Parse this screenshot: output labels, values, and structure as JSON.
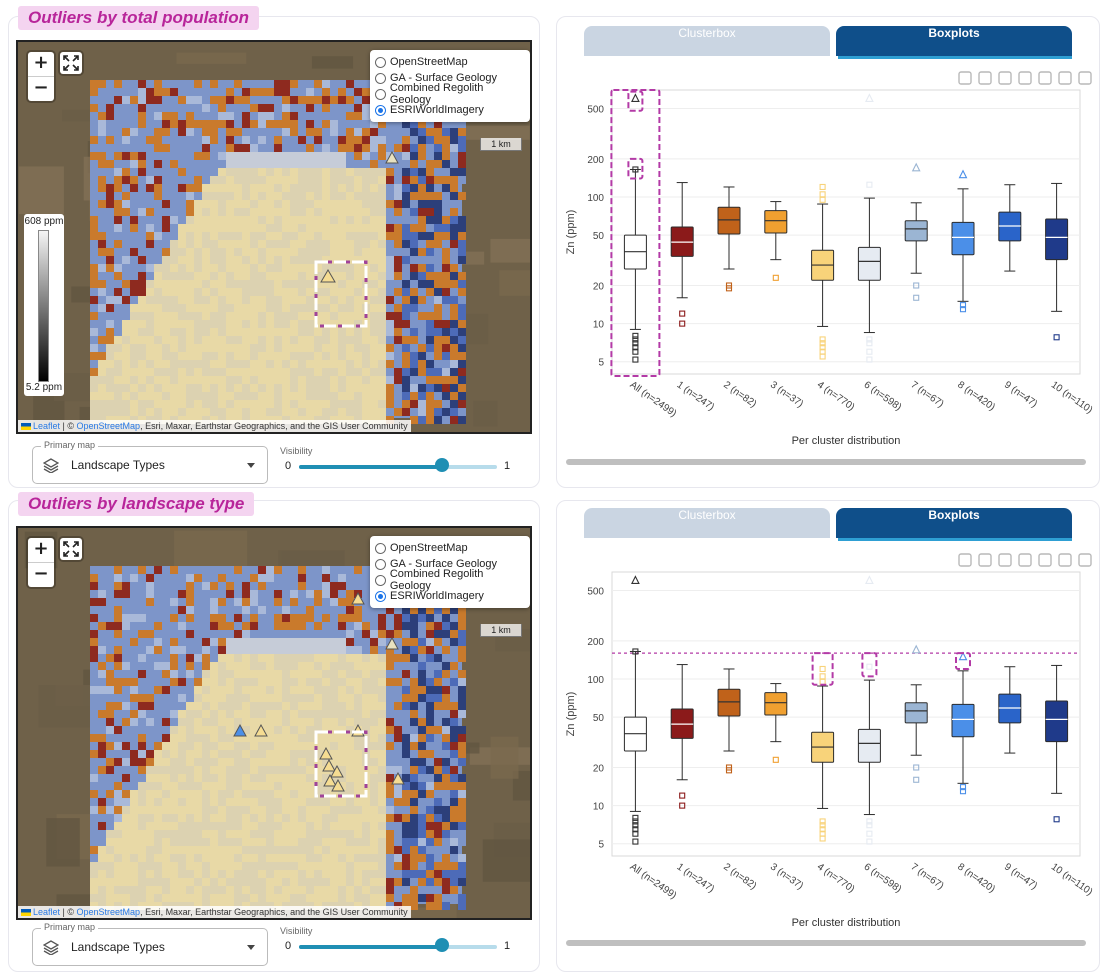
{
  "panels": [
    {
      "title": "Outliers by total population",
      "layers": [
        "OpenStreetMap",
        "GA - Surface Geology",
        "Combined Regolith Geology",
        "ESRIWorldImagery"
      ],
      "selected_layer": "ESRIWorldImagery",
      "scale_label": "1 km",
      "legend_max": "608 ppm",
      "legend_min": "5.2 ppm",
      "attribution_leaflet": "Leaflet",
      "attribution_osm": "OpenStreetMap",
      "attribution_rest": ", Esri, Maxar, Earthstar Geographics, and the GIS User Community",
      "primary_map_label": "Primary map",
      "primary_map_value": "Landscape Types",
      "visibility_label": "Visibility",
      "visibility_min": "0",
      "visibility_max": "1",
      "visibility_value": 0.72,
      "tabs": [
        "Clusterbox",
        "Boxplots"
      ],
      "active_tab": "Boxplots"
    },
    {
      "title": "Outliers by landscape type",
      "layers": [
        "OpenStreetMap",
        "GA - Surface Geology",
        "Combined Regolith Geology",
        "ESRIWorldImagery"
      ],
      "selected_layer": "ESRIWorldImagery",
      "scale_label": "1 km",
      "attribution_leaflet": "Leaflet",
      "attribution_osm": "OpenStreetMap",
      "attribution_rest": ", Esri, Maxar, Earthstar Geographics, and the GIS User Community",
      "primary_map_label": "Primary map",
      "primary_map_value": "Landscape Types",
      "visibility_label": "Visibility",
      "visibility_min": "0",
      "visibility_max": "1",
      "visibility_value": 0.72,
      "tabs": [
        "Clusterbox",
        "Boxplots"
      ],
      "active_tab": "Boxplots"
    }
  ],
  "chart_data": [
    {
      "type": "box",
      "xlabel": "Per cluster distribution",
      "ylabel": "Zn (ppm)",
      "yscale": "log",
      "ylim": [
        4,
        700
      ],
      "yticks": [
        5,
        10,
        20,
        50,
        100,
        200,
        500
      ],
      "categories": [
        "All (n=2499)",
        "1 (n=247)",
        "2 (n=82)",
        "3 (n=37)",
        "4 (n=770)",
        "6 (n=598)",
        "7 (n=67)",
        "8 (n=420)",
        "9 (n=47)",
        "10 (n=110)"
      ],
      "colors": [
        "#ffffff",
        "#8b1a1a",
        "#c0621a",
        "#f0a030",
        "#f8d37a",
        "#e6ebf2",
        "#9bb5d3",
        "#4b8fe8",
        "#2a64c9",
        "#1f3a8a"
      ],
      "boxes": [
        {
          "whisker_low": 9,
          "q1": 27,
          "median": 37,
          "q3": 50,
          "whisker_high": 165,
          "outliers": [
            5.2,
            6,
            6.5,
            7,
            7.5,
            8,
            165,
            600
          ]
        },
        {
          "whisker_low": 16,
          "q1": 34,
          "median": 44,
          "q3": 58,
          "whisker_high": 130,
          "outliers": [
            10,
            12
          ]
        },
        {
          "whisker_low": 27,
          "q1": 51,
          "median": 66,
          "q3": 83,
          "whisker_high": 120,
          "outliers": [
            19,
            20
          ]
        },
        {
          "whisker_low": 32,
          "q1": 52,
          "median": 65,
          "q3": 78,
          "whisker_high": 92,
          "outliers": [
            23
          ]
        },
        {
          "whisker_low": 9.5,
          "q1": 22,
          "median": 29,
          "q3": 38,
          "whisker_high": 88,
          "outliers": [
            5.5,
            6,
            6.5,
            7,
            7.5,
            95,
            105,
            120
          ]
        },
        {
          "whisker_low": 8.5,
          "q1": 22,
          "median": 31,
          "q3": 40,
          "whisker_high": 98,
          "outliers": [
            5.2,
            6,
            7,
            7.5,
            125,
            600
          ]
        },
        {
          "whisker_low": 25,
          "q1": 45,
          "median": 56,
          "q3": 65,
          "whisker_high": 90,
          "outliers": [
            16,
            20,
            170
          ]
        },
        {
          "whisker_low": 15,
          "q1": 35,
          "median": 48,
          "q3": 63,
          "whisker_high": 116,
          "outliers": [
            13,
            14,
            150
          ]
        },
        {
          "whisker_low": 26,
          "q1": 45,
          "median": 59,
          "q3": 76,
          "whisker_high": 125,
          "outliers": []
        },
        {
          "whisker_low": 12.5,
          "q1": 32,
          "median": 48,
          "q3": 67,
          "whisker_high": 128,
          "outliers": [
            7.8
          ]
        }
      ]
    },
    {
      "type": "box",
      "xlabel": "Per cluster distribution",
      "ylabel": "Zn (ppm)",
      "yscale": "log",
      "ylim": [
        4,
        700
      ],
      "yticks": [
        5,
        10,
        20,
        50,
        100,
        200,
        500
      ],
      "threshold_line": 160,
      "categories": [
        "All (n=2499)",
        "1 (n=247)",
        "2 (n=82)",
        "3 (n=37)",
        "4 (n=770)",
        "6 (n=598)",
        "7 (n=67)",
        "8 (n=420)",
        "9 (n=47)",
        "10 (n=110)"
      ],
      "colors": [
        "#ffffff",
        "#8b1a1a",
        "#c0621a",
        "#f0a030",
        "#f8d37a",
        "#e6ebf2",
        "#9bb5d3",
        "#4b8fe8",
        "#2a64c9",
        "#1f3a8a"
      ],
      "boxes": [
        {
          "whisker_low": 9,
          "q1": 27,
          "median": 37,
          "q3": 50,
          "whisker_high": 165,
          "outliers": [
            5.2,
            6,
            6.5,
            7,
            7.5,
            8,
            165,
            600
          ]
        },
        {
          "whisker_low": 16,
          "q1": 34,
          "median": 44,
          "q3": 58,
          "whisker_high": 130,
          "outliers": [
            10,
            12
          ]
        },
        {
          "whisker_low": 27,
          "q1": 51,
          "median": 66,
          "q3": 83,
          "whisker_high": 120,
          "outliers": [
            19,
            20
          ]
        },
        {
          "whisker_low": 32,
          "q1": 52,
          "median": 65,
          "q3": 78,
          "whisker_high": 92,
          "outliers": [
            23
          ]
        },
        {
          "whisker_low": 9.5,
          "q1": 22,
          "median": 29,
          "q3": 38,
          "whisker_high": 88,
          "outliers": [
            5.5,
            6,
            6.5,
            7,
            7.5,
            95,
            105,
            120
          ]
        },
        {
          "whisker_low": 8.5,
          "q1": 22,
          "median": 31,
          "q3": 40,
          "whisker_high": 98,
          "outliers": [
            5.2,
            6,
            7,
            7.5,
            125,
            600
          ]
        },
        {
          "whisker_low": 25,
          "q1": 45,
          "median": 56,
          "q3": 65,
          "whisker_high": 90,
          "outliers": [
            16,
            20,
            170
          ]
        },
        {
          "whisker_low": 15,
          "q1": 35,
          "median": 48,
          "q3": 63,
          "whisker_high": 116,
          "outliers": [
            13,
            14,
            150
          ]
        },
        {
          "whisker_low": 26,
          "q1": 45,
          "median": 59,
          "q3": 76,
          "whisker_high": 125,
          "outliers": []
        },
        {
          "whisker_low": 12.5,
          "q1": 32,
          "median": 48,
          "q3": 67,
          "whisker_high": 128,
          "outliers": [
            7.8
          ]
        }
      ]
    }
  ]
}
